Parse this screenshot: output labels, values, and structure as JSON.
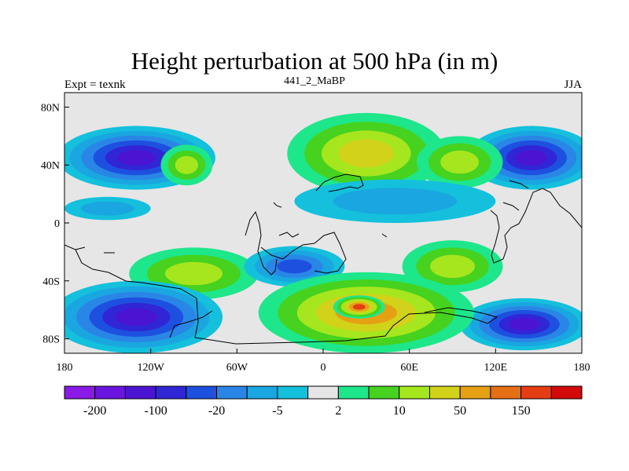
{
  "chart_data": {
    "type": "heatmap",
    "title": "Height perturbation at 500 hPa (in m)",
    "left_label": "Expt = texnk",
    "center_label": "441_2_MaBP",
    "right_label": "JJA",
    "x_ticks": [
      "180",
      "120W",
      "60W",
      "0",
      "60E",
      "120E",
      "180"
    ],
    "y_ticks": [
      "80N",
      "40N",
      "0",
      "40S",
      "80S"
    ],
    "xlim": [
      -180,
      180
    ],
    "ylim": [
      -90,
      90
    ],
    "colorbar": {
      "colors": [
        "#8a1ae6",
        "#6a14e0",
        "#4b14d2",
        "#3026d6",
        "#1e50e0",
        "#2a86e6",
        "#1aa6e0",
        "#14c0dc",
        "#e6e6e6",
        "#1ee68a",
        "#46d21e",
        "#a6e61e",
        "#d2d21a",
        "#e6a014",
        "#e66e14",
        "#e63c14",
        "#d20a0a"
      ],
      "labels": [
        "-200",
        "-100",
        "-20",
        "-5",
        "2",
        "10",
        "50",
        "150"
      ]
    },
    "blobs": [
      {
        "lon": -130,
        "lat": 45,
        "rx": 55,
        "ry": 22,
        "value": -110
      },
      {
        "lon": 145,
        "lat": 45,
        "rx": 45,
        "ry": 22,
        "value": -110
      },
      {
        "lon": -95,
        "lat": 40,
        "rx": 18,
        "ry": 14,
        "value": 40
      },
      {
        "lon": 30,
        "lat": 48,
        "rx": 55,
        "ry": 28,
        "value": 55
      },
      {
        "lon": 95,
        "lat": 42,
        "rx": 30,
        "ry": 18,
        "value": 30
      },
      {
        "lon": 50,
        "lat": 15,
        "rx": 70,
        "ry": 15,
        "value": -8
      },
      {
        "lon": -150,
        "lat": 10,
        "rx": 30,
        "ry": 8,
        "value": -6
      },
      {
        "lon": -90,
        "lat": -35,
        "rx": 45,
        "ry": 18,
        "value": 40
      },
      {
        "lon": 90,
        "lat": -30,
        "rx": 35,
        "ry": 18,
        "value": 35
      },
      {
        "lon": -20,
        "lat": -30,
        "rx": 35,
        "ry": 14,
        "value": -40
      },
      {
        "lon": -130,
        "lat": -65,
        "rx": 60,
        "ry": 25,
        "value": -120
      },
      {
        "lon": 140,
        "lat": -70,
        "rx": 45,
        "ry": 18,
        "value": -100
      },
      {
        "lon": 30,
        "lat": -62,
        "rx": 75,
        "ry": 28,
        "value": 110
      },
      {
        "lon": 25,
        "lat": -58,
        "rx": 18,
        "ry": 8,
        "value": 160
      }
    ]
  }
}
